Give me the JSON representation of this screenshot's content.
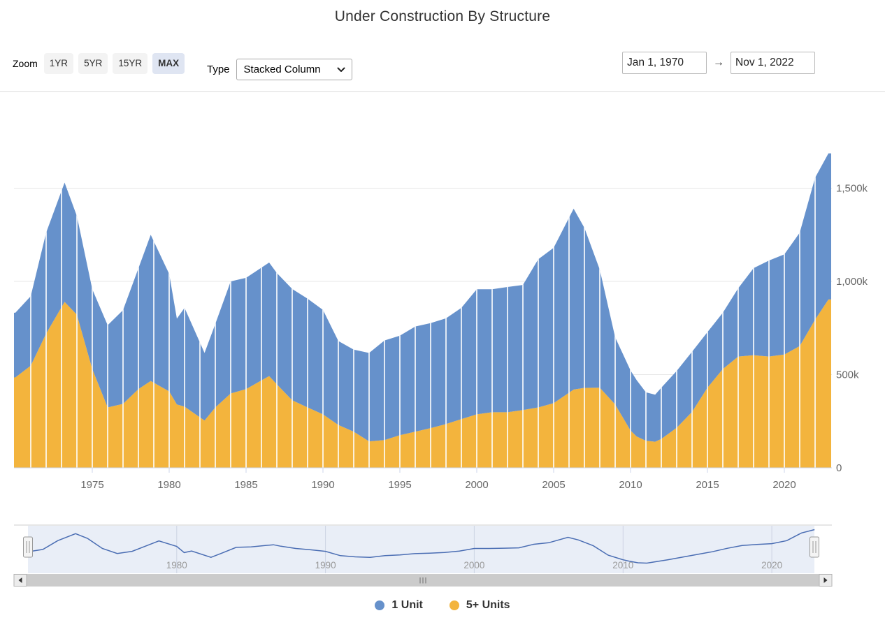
{
  "title": "Under Construction By Structure",
  "toolbar": {
    "zoom_label": "Zoom",
    "zoom_options": [
      "1YR",
      "5YR",
      "15YR",
      "MAX"
    ],
    "zoom_selected": "MAX",
    "type_label": "Type",
    "type_value": "Stacked Column",
    "range_from": "Jan 1, 1970",
    "range_arrow": "→",
    "range_to": "Nov 1, 2022"
  },
  "chart_data": {
    "type": "bar",
    "stacked": true,
    "title": "Under Construction By Structure",
    "unit": "thousands of housing units",
    "x_years": [
      1970,
      1971,
      1972,
      1973.2,
      1974,
      1975,
      1976,
      1977,
      1978,
      1978.8,
      1980,
      1980.5,
      1981,
      1982.3,
      1983,
      1984,
      1985,
      1986.5,
      1987,
      1988,
      1989,
      1990,
      1991,
      1992,
      1993,
      1994,
      1995,
      1996,
      1997,
      1998,
      1999,
      2000,
      2001,
      2002,
      2003,
      2004,
      2005,
      2006.3,
      2007,
      2008,
      2009,
      2010,
      2010.4,
      2011,
      2011.6,
      2012,
      2013,
      2014,
      2015,
      2016,
      2017,
      2018,
      2019,
      2020,
      2021,
      2022,
      2022.87
    ],
    "series": [
      {
        "name": "1 Unit",
        "color": "#6691CB",
        "stack_position": "top",
        "values_thousands": [
          347,
          373,
          541,
          640,
          529,
          428,
          441,
          503,
          648,
          784,
          630,
          460,
          530,
          362,
          448,
          601,
          597,
          609,
          597,
          597,
          583,
          560,
          450,
          440,
          474,
          534,
          534,
          564,
          563,
          567,
          597,
          671,
          660,
          672,
          671,
          795,
          833,
          970,
          858,
          633,
          360,
          322,
          302,
          260,
          252,
          275,
          305,
          323,
          298,
          302,
          366,
          467,
          515,
          537,
          608,
          761,
          784
        ]
      },
      {
        "name": "5+ Units",
        "color": "#F3B43D",
        "stack_position": "bottom",
        "values_thousands": [
          485,
          548,
          720,
          890,
          821,
          530,
          324,
          343,
          422,
          466,
          410,
          340,
          328,
          254,
          324,
          399,
          422,
          492,
          448,
          362,
          324,
          287,
          230,
          194,
          142,
          149,
          175,
          194,
          213,
          235,
          261,
          287,
          298,
          298,
          310,
          324,
          347,
          420,
          429,
          430,
          340,
          200,
          168,
          145,
          140,
          155,
          215,
          300,
          430,
          530,
          597,
          604,
          597,
          608,
          653,
          795,
          903
        ]
      }
    ],
    "ylim_thousands": [
      0,
      1700
    ],
    "yticks": [
      {
        "value": 0,
        "label": "0"
      },
      {
        "value": 500,
        "label": "500k"
      },
      {
        "value": 1000,
        "label": "1,000k"
      },
      {
        "value": 1500,
        "label": "1,500k"
      }
    ],
    "xticks": [
      1975,
      1980,
      1985,
      1990,
      1995,
      2000,
      2005,
      2010,
      2015,
      2020
    ],
    "grid": "horizontal",
    "legend_position": "bottom"
  },
  "navigator": {
    "xticks": [
      1980,
      1990,
      2000,
      2010,
      2020
    ],
    "line_color": "#4A6DB3",
    "band_color": "#E9EEF7",
    "gridline_color": "#CCD3E3",
    "label_color": "#999999"
  },
  "colors": {
    "grid": "#E7E7E7",
    "axis": "#CCD6EB",
    "tick_text": "#666666",
    "selected_button_bg": "#DFE5F2",
    "button_bg": "#F3F3F3"
  }
}
